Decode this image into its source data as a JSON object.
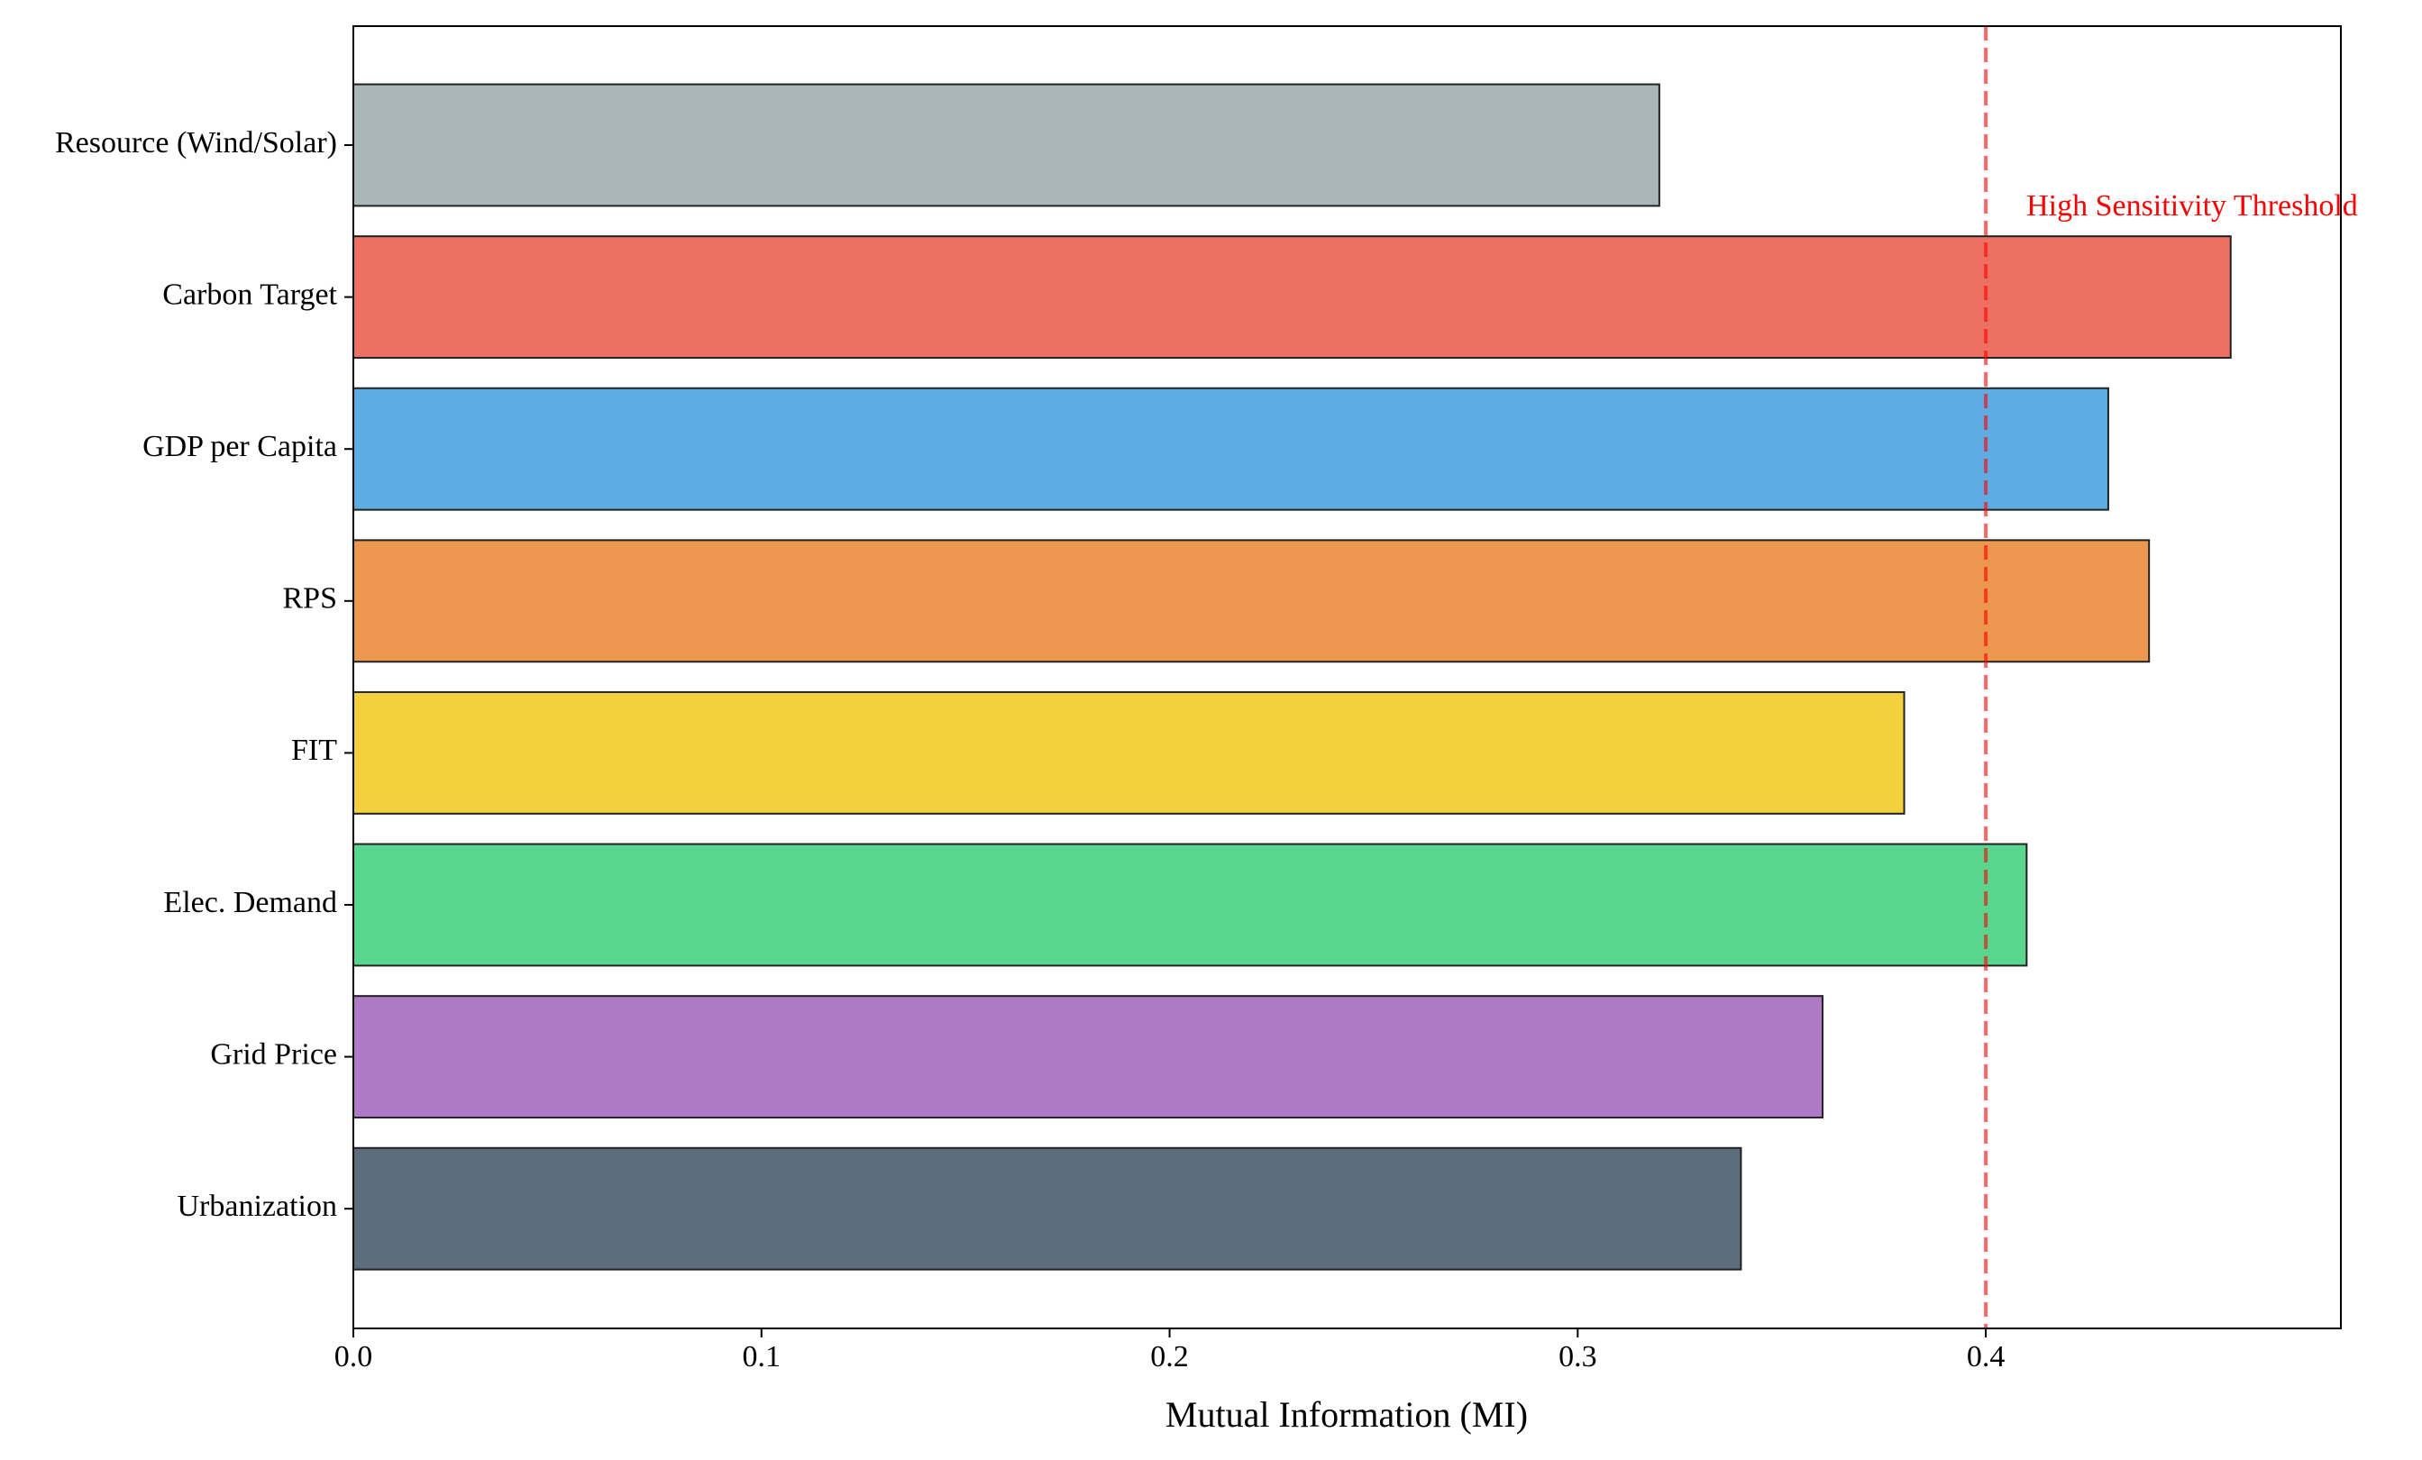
{
  "chart_data": {
    "type": "barh",
    "xlabel": "Mutual Information (MI)",
    "categories": [
      "Resource (Wind/Solar)",
      "Carbon Target",
      "GDP per Capita",
      "RPS",
      "FIT",
      "Elec. Demand",
      "Grid Price",
      "Urbanization"
    ],
    "values": [
      0.32,
      0.46,
      0.43,
      0.44,
      0.38,
      0.41,
      0.36,
      0.34
    ],
    "colors": [
      "#aab7b8",
      "#ec7063",
      "#5dade2",
      "#eb984e",
      "#f4d03f",
      "#58d68d",
      "#af7ac5",
      "#5d6d7e"
    ],
    "xlim": [
      0,
      0.487
    ],
    "xticks": [
      {
        "value": 0,
        "label": "0.0"
      },
      0.1,
      0.2,
      0.3,
      0.4
    ],
    "threshold": {
      "value": 0.4,
      "label": "High Sensitivity Threshold",
      "color": "#ff0000"
    },
    "grid": false
  }
}
